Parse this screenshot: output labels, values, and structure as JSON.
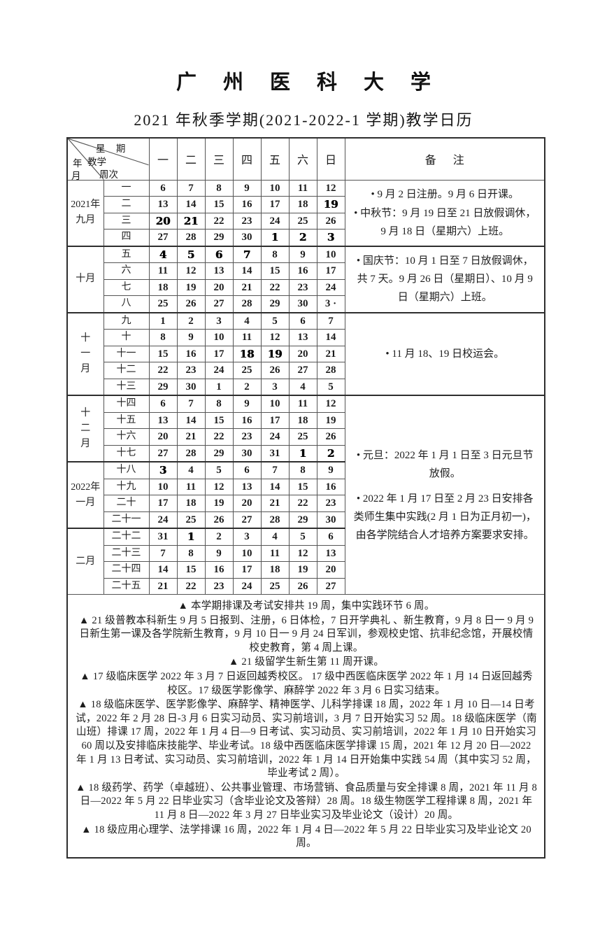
{
  "page": {
    "title": "广州医科大学",
    "subtitle": "2021 年秋季学期(2021-2022-1 学期)教学日历"
  },
  "corner": {
    "top": "星 期",
    "year": "年",
    "teaching": "教学",
    "month": "月",
    "week_no": "周次"
  },
  "day_headers": [
    "一",
    "二",
    "三",
    "四",
    "五",
    "六",
    "日"
  ],
  "remarks_header": "备 注",
  "calendar": {
    "month_groups": [
      {
        "label_lines": [
          "2021年",
          "九月"
        ],
        "weeks": 4
      },
      {
        "label_lines": [
          "十月"
        ],
        "weeks": 4
      },
      {
        "label_lines": [
          "十",
          "一",
          "月"
        ],
        "weeks": 5
      },
      {
        "label_lines": [
          "十",
          "二",
          "月"
        ],
        "weeks": 4
      },
      {
        "label_lines": [
          "2022年",
          "一月"
        ],
        "weeks": 4
      },
      {
        "label_lines": [
          "二月"
        ],
        "weeks": 4
      }
    ],
    "weeks": [
      {
        "label": "一",
        "dates": [
          "6",
          "7",
          "8",
          "9",
          "10",
          "11",
          "12"
        ],
        "bold": []
      },
      {
        "label": "二",
        "dates": [
          "13",
          "14",
          "15",
          "16",
          "17",
          "18",
          "19"
        ],
        "bold": [
          6
        ]
      },
      {
        "label": "三",
        "dates": [
          "20",
          "21",
          "22",
          "23",
          "24",
          "25",
          "26"
        ],
        "bold": [
          0,
          1
        ]
      },
      {
        "label": "四",
        "dates": [
          "27",
          "28",
          "29",
          "30",
          "1",
          "2",
          "3"
        ],
        "bold": [
          4,
          5,
          6
        ]
      },
      {
        "label": "五",
        "dates": [
          "4",
          "5",
          "6",
          "7",
          "8",
          "9",
          "10"
        ],
        "bold": [
          0,
          1,
          2,
          3
        ]
      },
      {
        "label": "六",
        "dates": [
          "11",
          "12",
          "13",
          "14",
          "15",
          "16",
          "17"
        ],
        "bold": []
      },
      {
        "label": "七",
        "dates": [
          "18",
          "19",
          "20",
          "21",
          "22",
          "23",
          "24"
        ],
        "bold": []
      },
      {
        "label": "八",
        "dates": [
          "25",
          "26",
          "27",
          "28",
          "29",
          "30",
          "3 ·"
        ],
        "bold": []
      },
      {
        "label": "九",
        "dates": [
          "1",
          "2",
          "3",
          "4",
          "5",
          "6",
          "7"
        ],
        "bold": []
      },
      {
        "label": "十",
        "dates": [
          "8",
          "9",
          "10",
          "11",
          "12",
          "13",
          "14"
        ],
        "bold": []
      },
      {
        "label": "十一",
        "dates": [
          "15",
          "16",
          "17",
          "18",
          "19",
          "20",
          "21"
        ],
        "bold": [
          3,
          4
        ]
      },
      {
        "label": "十二",
        "dates": [
          "22",
          "23",
          "24",
          "25",
          "26",
          "27",
          "28"
        ],
        "bold": []
      },
      {
        "label": "十三",
        "dates": [
          "29",
          "30",
          "1",
          "2",
          "3",
          "4",
          "5"
        ],
        "bold": []
      },
      {
        "label": "十四",
        "dates": [
          "6",
          "7",
          "8",
          "9",
          "10",
          "11",
          "12"
        ],
        "bold": []
      },
      {
        "label": "十五",
        "dates": [
          "13",
          "14",
          "15",
          "16",
          "17",
          "18",
          "19"
        ],
        "bold": []
      },
      {
        "label": "十六",
        "dates": [
          "20",
          "21",
          "22",
          "23",
          "24",
          "25",
          "26"
        ],
        "bold": []
      },
      {
        "label": "十七",
        "dates": [
          "27",
          "28",
          "29",
          "30",
          "31",
          "1",
          "2"
        ],
        "bold": [
          5,
          6
        ]
      },
      {
        "label": "十八",
        "dates": [
          "3",
          "4",
          "5",
          "6",
          "7",
          "8",
          "9"
        ],
        "bold": [
          0
        ]
      },
      {
        "label": "十九",
        "dates": [
          "10",
          "11",
          "12",
          "13",
          "14",
          "15",
          "16"
        ],
        "bold": []
      },
      {
        "label": "二十",
        "dates": [
          "17",
          "18",
          "19",
          "20",
          "21",
          "22",
          "23"
        ],
        "bold": []
      },
      {
        "label": "二十一",
        "dates": [
          "24",
          "25",
          "26",
          "27",
          "28",
          "29",
          "30"
        ],
        "bold": []
      },
      {
        "label": "二十二",
        "dates": [
          "31",
          "1",
          "2",
          "3",
          "4",
          "5",
          "6"
        ],
        "bold": [
          1
        ]
      },
      {
        "label": "二十三",
        "dates": [
          "7",
          "8",
          "9",
          "10",
          "11",
          "12",
          "13"
        ],
        "bold": []
      },
      {
        "label": "二十四",
        "dates": [
          "14",
          "15",
          "16",
          "17",
          "18",
          "19",
          "20"
        ],
        "bold": []
      },
      {
        "label": "二十五",
        "dates": [
          "21",
          "22",
          "23",
          "24",
          "25",
          "26",
          "27"
        ],
        "bold": []
      }
    ],
    "remark_groups": [
      {
        "weeks": 4,
        "spaced": false,
        "paragraphs": [
          "• 9 月 2 日注册。9 月 6 日开课。",
          "• 中秋节：9 月 19 日至 21 日放假调休，9 月 18 日（星期六）上班。"
        ]
      },
      {
        "weeks": 4,
        "spaced": false,
        "paragraphs": [
          "• 国庆节：10 月 1 日至 7 日放假调休，共 7 天。9 月 26 日（星期日）、10 月 9 日（星期六）上班。"
        ]
      },
      {
        "weeks": 5,
        "spaced": false,
        "paragraphs": [
          "• 11 月 18、19 日校运会。"
        ]
      },
      {
        "weeks": 12,
        "spaced": true,
        "paragraphs": [
          "• 元旦：2022 年 1 月 1 日至 3 日元旦节放假。",
          "• 2022 年 1 月 17 日至 2 月 23 日安排各类师生集中实践(2 月 1 日为正月初一)，由各学院结合人才培养方案要求安排。"
        ]
      }
    ]
  },
  "notes": [
    "▲ 本学期排课及考试安排共 19 周，集中实践环节 6 周。",
    "▲ 21 级普教本科新生 9 月 5 日报到、注册，6 日体检，7 日开学典礼 、新生教育，9 月 8 日一 9 月 9 日新生第一课及各学院新生教育，9 月 10 日一 9 月 24 日军训，参观校史馆、抗非纪念馆，开展校情校史教育，第 4 周上课。",
    "▲ 21 级留学生新生第 11 周开课。",
    "▲ 17 级临床医学 2022 年 3 月 7 日返回越秀校区。 17 级中西医临床医学 2022 年 1 月 14 日返回越秀校区。17 级医学影像学、麻醉学 2022 年 3 月 6 日实习结束。",
    "▲ 18 级临床医学、医学影像学、麻醉学、精神医学、儿科学排课 18 周，2022 年 1 月 10 日—14 日考试，2022 年 2 月 28 日-3 月 6 日实习动员、实习前培训，3 月 7 日开始实习 52 周。18 级临床医学（南山班）排课 17 周，2022 年 1 月 4 日—9 日考试、实习动员、实习前培训，2022 年 1 月 10 日开始实习 60 周以及安排临床技能学、毕业考试。18 级中西医临床医学排课 15 周，2021 年 12 月 20 日—2022 年 1 月 13 日考试、实习动员、实习前培训，2022 年 1 月 14 日开始集中实践 54 周（其中实习 52 周，毕业考试 2 周）。",
    "▲ 18 级药学、药学（卓越班）、公共事业管理、市场营销、食品质量与安全排课 8 周，2021 年 11 月 8 日—2022 年 5 月 22 日毕业实习（含毕业论文及答辩）28 周。18 级生物医学工程排课 8 周，2021 年 11 月 8 日—2022 年 3 月 27 日毕业实习及毕业论文（设计）20 周。",
    "▲ 18 级应用心理学、法学排课 16 周，2022 年 1 月 4 日—2022 年 5 月 22 日毕业实习及毕业论文 20 周。"
  ]
}
